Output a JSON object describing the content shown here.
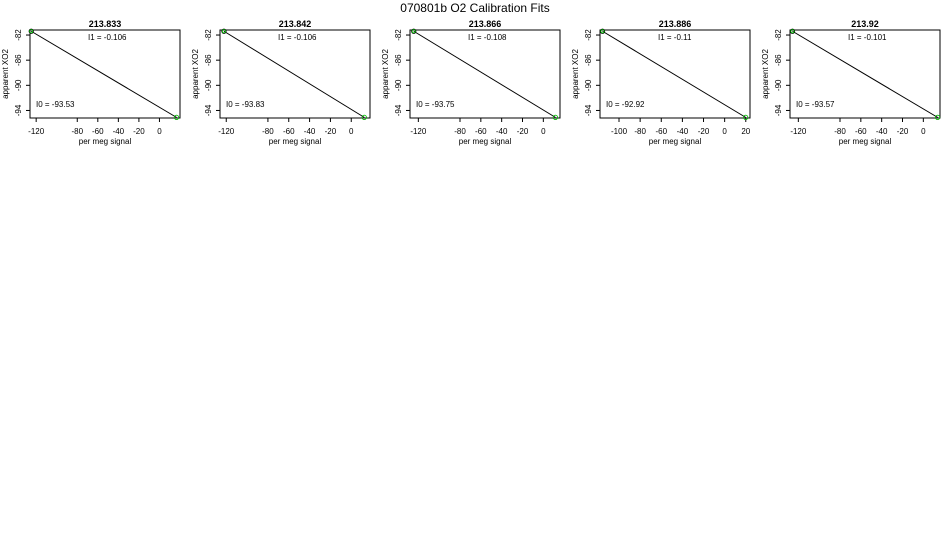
{
  "figure": {
    "title": "070801b   O2 Calibration Fits"
  },
  "colors": {
    "axis": "#000000",
    "fit_line": "#000000",
    "point_start": "#000000",
    "point_end": "#00bb00"
  },
  "chart_data": [
    {
      "type": "line",
      "title": "213.833",
      "xlabel": "per meg signal",
      "ylabel": "apparent XO2",
      "xlim": [
        -126,
        20
      ],
      "ylim": [
        -95.2,
        -81.2
      ],
      "xticks": [
        -120,
        -80,
        -60,
        -40,
        -20,
        0
      ],
      "yticks": [
        -82,
        -86,
        -90,
        -94
      ],
      "i1_label": "I1 =  -0.106",
      "i0_label": "I0 =  -93.53",
      "x": [
        -124.8,
        16.6
      ],
      "y": [
        -81.4,
        -95.1
      ]
    },
    {
      "type": "line",
      "title": "213.842",
      "xlabel": "per meg signal",
      "ylabel": "apparent XO2",
      "xlim": [
        -126,
        18
      ],
      "ylim": [
        -95.2,
        -81.2
      ],
      "xticks": [
        -120,
        -80,
        -60,
        -40,
        -20,
        0
      ],
      "yticks": [
        -82,
        -86,
        -90,
        -94
      ],
      "i1_label": "I1 =  -0.106",
      "i0_label": "I0 =  -93.83",
      "x": [
        -122.2,
        12.5
      ],
      "y": [
        -81.4,
        -95.1
      ]
    },
    {
      "type": "line",
      "title": "213.866",
      "xlabel": "per meg signal",
      "ylabel": "apparent XO2",
      "xlim": [
        -128,
        16
      ],
      "ylim": [
        -95.2,
        -81.2
      ],
      "xticks": [
        -120,
        -80,
        -60,
        -40,
        -20,
        0
      ],
      "yticks": [
        -82,
        -86,
        -90,
        -94
      ],
      "i1_label": "I1 =  -0.108",
      "i0_label": "I0 =  -93.75",
      "x": [
        -124.4,
        11.6
      ],
      "y": [
        -81.4,
        -95.1
      ]
    },
    {
      "type": "line",
      "title": "213.886",
      "xlabel": "per meg signal",
      "ylabel": "apparent XO2",
      "xlim": [
        -118,
        24
      ],
      "ylim": [
        -95.2,
        -81.2
      ],
      "xticks": [
        -100,
        -80,
        -60,
        -40,
        -20,
        0,
        20
      ],
      "yticks": [
        -82,
        -86,
        -90,
        -94
      ],
      "i1_label": "I1 =  -0.11",
      "i0_label": "I0 =  -92.92",
      "x": [
        -115.6,
        19.9
      ],
      "y": [
        -81.4,
        -95.1
      ]
    },
    {
      "type": "line",
      "title": "213.92",
      "xlabel": "per meg signal",
      "ylabel": "apparent XO2",
      "xlim": [
        -128,
        16
      ],
      "ylim": [
        -95.2,
        -81.2
      ],
      "xticks": [
        -120,
        -80,
        -60,
        -40,
        -20,
        0
      ],
      "yticks": [
        -82,
        -86,
        -90,
        -94
      ],
      "i1_label": "I1 =  -0.101",
      "i0_label": "I0 =  -93.57",
      "x": [
        -125.6,
        13.7
      ],
      "y": [
        -81.4,
        -95.1
      ]
    }
  ]
}
